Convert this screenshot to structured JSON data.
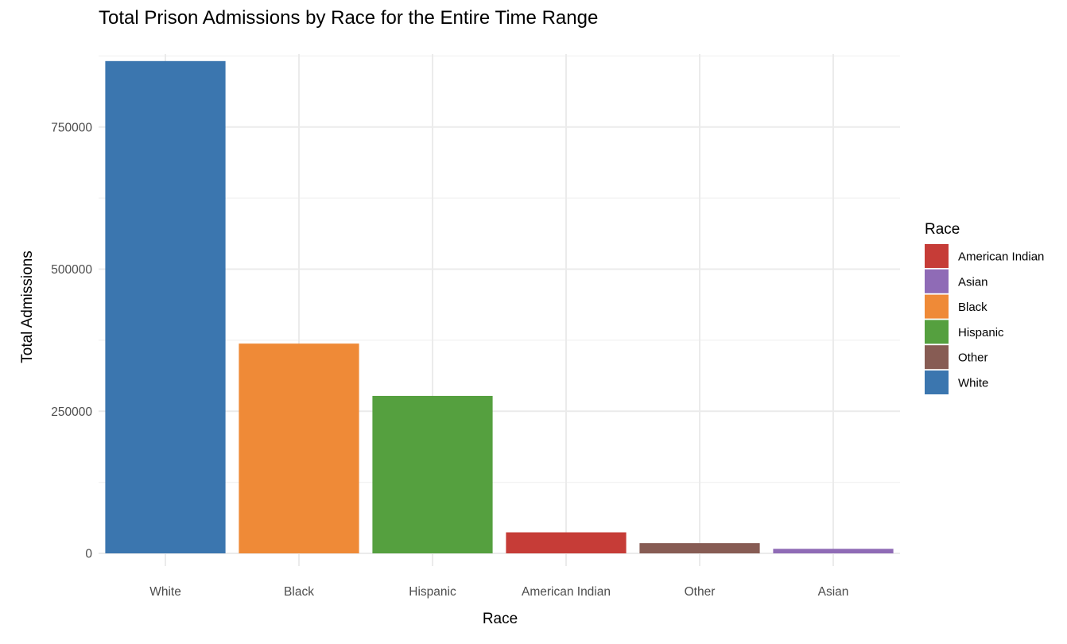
{
  "chart_data": {
    "type": "bar",
    "title": "Total Prison Admissions by Race for the Entire Time Range",
    "xlabel": "Race",
    "ylabel": "Total Admissions",
    "categories": [
      "White",
      "Black",
      "Hispanic",
      "American Indian",
      "Other",
      "Asian"
    ],
    "values": [
      866000,
      369000,
      277000,
      37000,
      18000,
      8000
    ],
    "colors": [
      "#3b76af",
      "#ef8a37",
      "#55a03f",
      "#c63c37",
      "#875c54",
      "#8f6bb6"
    ],
    "ylim": [
      0,
      885000
    ],
    "yticks": [
      0,
      250000,
      500000,
      750000
    ],
    "ytick_labels": [
      "0",
      "250000",
      "500000",
      "750000"
    ],
    "grid": true,
    "legend": {
      "title": "Race",
      "placement": "right",
      "items": [
        {
          "label": "American Indian",
          "color": "#c63c37"
        },
        {
          "label": "Asian",
          "color": "#8f6bb6"
        },
        {
          "label": "Black",
          "color": "#ef8a37"
        },
        {
          "label": "Hispanic",
          "color": "#55a03f"
        },
        {
          "label": "Other",
          "color": "#875c54"
        },
        {
          "label": "White",
          "color": "#3b76af"
        }
      ]
    }
  }
}
